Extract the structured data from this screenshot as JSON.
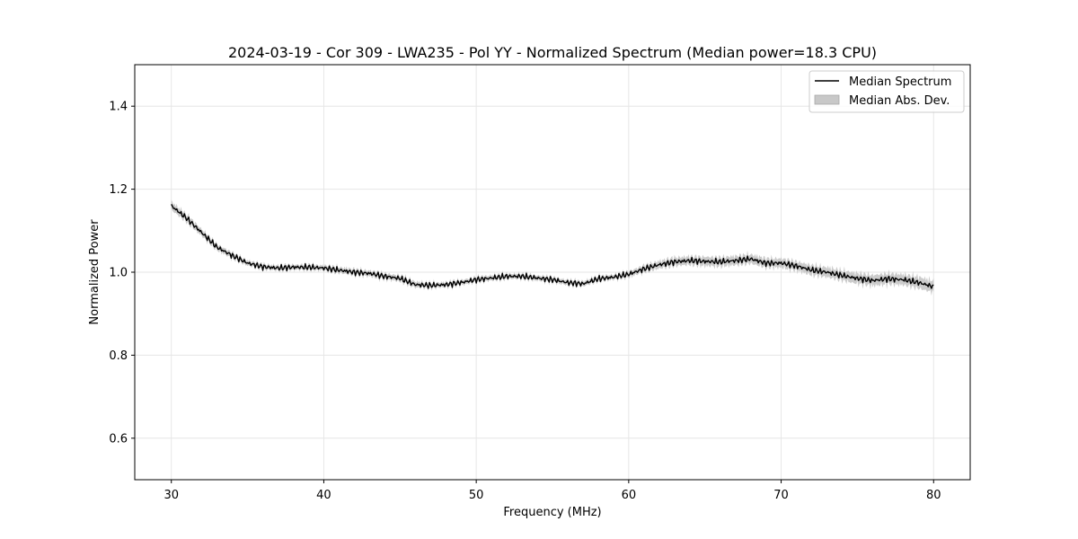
{
  "chart_data": {
    "type": "line",
    "title": "2024-03-19 - Cor 309 - LWA235 - Pol YY - Normalized Spectrum (Median power=18.3 CPU)",
    "xlabel": "Frequency (MHz)",
    "ylabel": "Normalized Power",
    "xlim": [
      27.6,
      82.4
    ],
    "ylim": [
      0.5,
      1.5
    ],
    "xticks": [
      30,
      40,
      50,
      60,
      70,
      80
    ],
    "yticks": [
      0.6,
      0.8,
      1.0,
      1.2,
      1.4
    ],
    "xtick_labels": [
      "30",
      "40",
      "50",
      "60",
      "70",
      "80"
    ],
    "ytick_labels": [
      "0.6",
      "0.8",
      "1.0",
      "1.2",
      "1.4"
    ],
    "grid": true,
    "legend_position": "top-right",
    "series": [
      {
        "name": "Median Spectrum",
        "color": "#000000",
        "x": [
          30,
          31,
          32,
          33,
          34,
          35,
          36,
          37,
          38,
          39,
          40,
          41,
          42,
          43,
          44,
          45,
          46,
          47,
          48,
          49,
          50,
          51,
          52,
          53,
          54,
          55,
          56,
          57,
          58,
          59,
          60,
          61,
          62,
          63,
          64,
          65,
          66,
          67,
          68,
          69,
          70,
          71,
          72,
          73,
          74,
          75,
          76,
          77,
          78,
          79,
          80
        ],
        "values": [
          1.16,
          1.13,
          1.095,
          1.06,
          1.04,
          1.022,
          1.013,
          1.01,
          1.012,
          1.012,
          1.01,
          1.005,
          1.0,
          0.997,
          0.99,
          0.985,
          0.97,
          0.968,
          0.97,
          0.975,
          0.982,
          0.986,
          0.99,
          0.99,
          0.986,
          0.982,
          0.975,
          0.972,
          0.984,
          0.988,
          0.995,
          1.008,
          1.018,
          1.025,
          1.028,
          1.026,
          1.025,
          1.028,
          1.032,
          1.022,
          1.022,
          1.015,
          1.005,
          1.0,
          0.992,
          0.985,
          0.98,
          0.984,
          0.982,
          0.975,
          0.965
        ]
      },
      {
        "name": "Median Abs. Dev.",
        "color": "#c8c8c8",
        "band_halfwidth": [
          0.01,
          0.009,
          0.008,
          0.007,
          0.007,
          0.006,
          0.006,
          0.006,
          0.006,
          0.006,
          0.006,
          0.007,
          0.007,
          0.007,
          0.007,
          0.007,
          0.007,
          0.006,
          0.006,
          0.006,
          0.006,
          0.006,
          0.006,
          0.006,
          0.006,
          0.006,
          0.006,
          0.006,
          0.006,
          0.006,
          0.007,
          0.008,
          0.009,
          0.01,
          0.01,
          0.011,
          0.011,
          0.011,
          0.011,
          0.011,
          0.011,
          0.011,
          0.012,
          0.012,
          0.012,
          0.013,
          0.013,
          0.013,
          0.013,
          0.014,
          0.014
        ]
      }
    ]
  }
}
